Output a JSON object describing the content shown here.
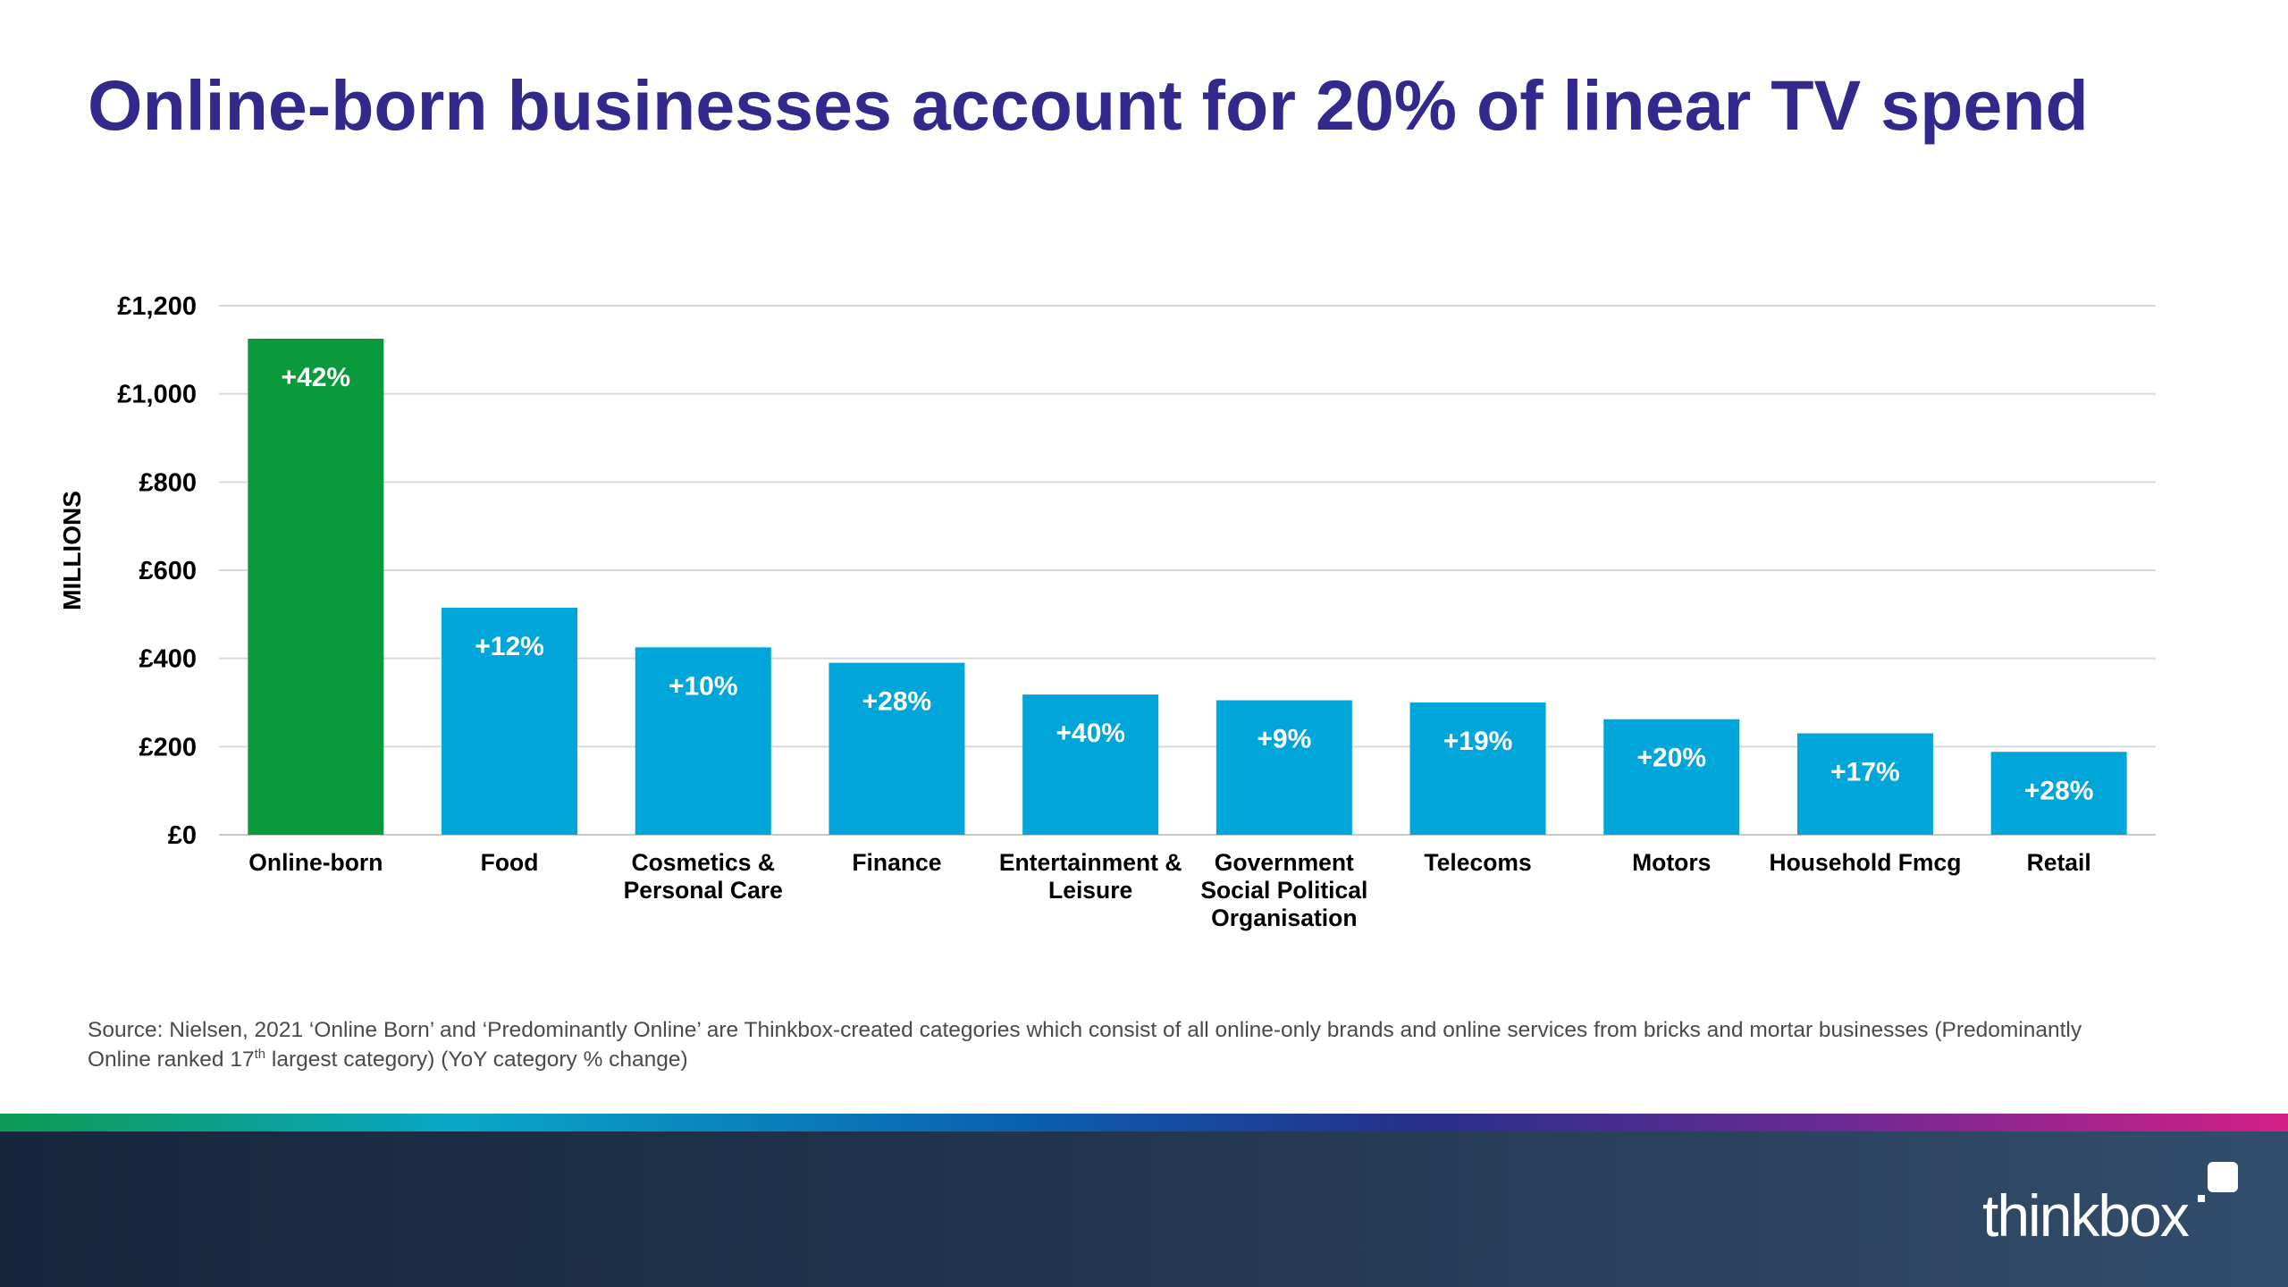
{
  "title": "Online-born businesses account for 20% of linear TV spend",
  "source": {
    "part1": "Source: Nielsen, 2021 ‘Online Born’ and ‘Predominantly Online’ are Thinkbox-created categories which consist of all online-only brands and online services from bricks and mortar businesses (Predominantly Online ranked 17",
    "sup": "th",
    "part2": " largest category) (YoY category % change)"
  },
  "logo": {
    "text": "thinkbox"
  },
  "colors": {
    "title": "#33288c",
    "highlight_bar": "#0a9a3c",
    "bar": "#00a5d9",
    "gridline": "#d9d9d9"
  },
  "chart_data": {
    "type": "bar",
    "ylabel": "MILLIONS",
    "ylim": [
      0,
      1200
    ],
    "yticks": [
      0,
      200,
      400,
      600,
      800,
      1000,
      1200
    ],
    "ytick_labels": [
      "£0",
      "£200",
      "£400",
      "£600",
      "£800",
      "£1,000",
      "£1,200"
    ],
    "grid": true,
    "categories": [
      [
        "Online-born"
      ],
      [
        "Food"
      ],
      [
        "Cosmetics &",
        "Personal Care"
      ],
      [
        "Finance"
      ],
      [
        "Entertainment &",
        "Leisure"
      ],
      [
        "Government",
        "Social Political",
        "Organisation"
      ],
      [
        "Telecoms"
      ],
      [
        "Motors"
      ],
      [
        "Household Fmcg"
      ],
      [
        "Retail"
      ]
    ],
    "values": [
      1125,
      515,
      425,
      390,
      318,
      305,
      300,
      262,
      230,
      188
    ],
    "labels": [
      "+42%",
      "+12%",
      "+10%",
      "+28%",
      "+40%",
      "+9%",
      "+19%",
      "+20%",
      "+17%",
      "+28%"
    ],
    "highlight_index": 0
  }
}
